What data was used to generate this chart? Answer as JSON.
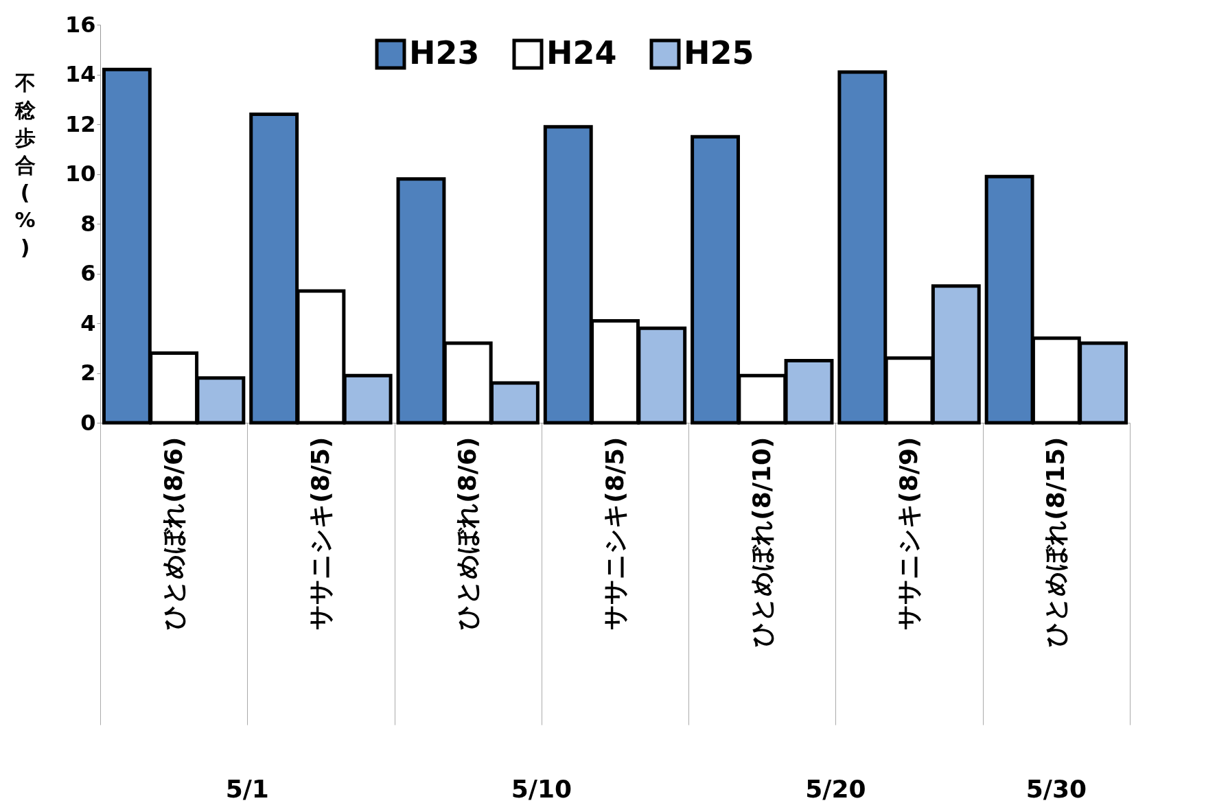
{
  "chart_data": {
    "type": "bar",
    "ylabel": "不稔歩合(%)",
    "categories": [
      "ひとめぼれ(8/6)",
      "ササニシキ(8/5)",
      "ひとめぼれ(8/6)",
      "ササニシキ(8/5)",
      "ひとめぼれ(8/10)",
      "ササニシキ(8/9)",
      "ひとめぼれ(8/15)"
    ],
    "series": [
      {
        "name": "H23",
        "color": "#4f81bd",
        "values": [
          14.2,
          12.4,
          9.8,
          11.9,
          11.5,
          14.1,
          9.9
        ]
      },
      {
        "name": "H24",
        "color": "#ffffff",
        "values": [
          2.8,
          5.3,
          3.2,
          4.1,
          1.9,
          2.6,
          3.4
        ]
      },
      {
        "name": "H25",
        "color": "#9dbbe3",
        "values": [
          1.8,
          1.9,
          1.6,
          3.8,
          2.5,
          5.5,
          3.2
        ]
      }
    ],
    "annotations": [
      "5/1",
      "5/10",
      "5/20",
      "5/30"
    ],
    "ylim": [
      0,
      16
    ],
    "yticks": [
      0,
      2,
      4,
      6,
      8,
      10,
      12,
      14,
      16
    ],
    "grid": false,
    "legend": "top"
  }
}
